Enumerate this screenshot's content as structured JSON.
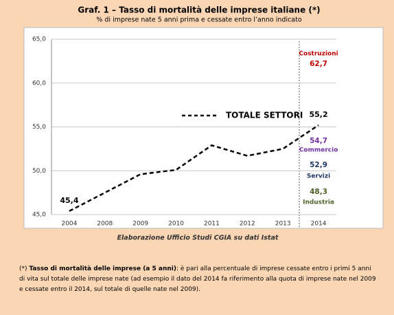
{
  "chart_data": {
    "type": "line",
    "title": "Graf. 1 – Tasso di mortalità delle imprese italiane (*)",
    "subtitle": "% di imprese nate 5 anni prima e cessate entro l’anno indicato",
    "categories": [
      "2004",
      "2008",
      "2009",
      "2010",
      "2011",
      "2012",
      "2013",
      "2014"
    ],
    "series": [
      {
        "name": "TOTALE SETTORI",
        "color": "#000000",
        "values": [
          45.4,
          47.5,
          49.6,
          50.1,
          52.9,
          51.7,
          52.5,
          55.2
        ],
        "value_labels": [
          "45,4",
          null,
          null,
          null,
          null,
          null,
          null,
          "55,2"
        ]
      }
    ],
    "ylim": [
      45,
      65
    ],
    "yticks": [
      {
        "value": 45,
        "label": "45,0"
      },
      {
        "value": 50,
        "label": "50,0"
      },
      {
        "value": 55,
        "label": "55,0"
      },
      {
        "value": 60,
        "label": "60,0"
      },
      {
        "value": 65,
        "label": "65,0"
      }
    ],
    "grid": true,
    "sectors": [
      {
        "name": "Costruzioni",
        "value": 62.7,
        "value_label": "62,7",
        "color": "#c00000"
      },
      {
        "name": "Commercio",
        "value": 54.7,
        "value_label": "54,7",
        "color": "#7030a0"
      },
      {
        "name": "Servizi",
        "value": 52.9,
        "value_label": "52,9",
        "color": "#1f3864"
      },
      {
        "name": "Industria",
        "value": 48.3,
        "value_label": "48,3",
        "color": "#4f6228"
      }
    ],
    "source": "Elaborazione Ufficio Studi CGIA su dati Istat"
  },
  "note": {
    "marker": "(*)",
    "bold": "Tasso di mortalità delle imprese (a 5 anni)",
    "text": ": è pari alla percentuale di imprese cessate entro i primi 5 anni di vita sul totale delle imprese nate (ad esempio il dato del 2014 fa riferimento alla quota di imprese nate nel 2009 e cessate entro il 2014, sul totale di quelle nate nel 2009)."
  }
}
